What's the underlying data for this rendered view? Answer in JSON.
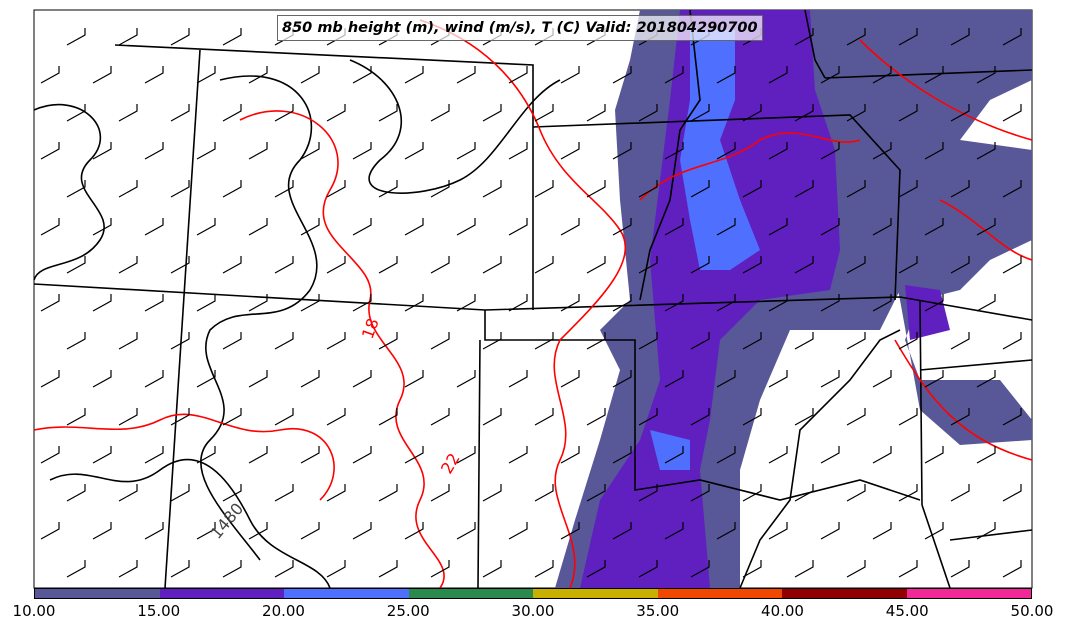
{
  "title": "850 mb height (m), wind (m/s), T (C) Valid: 201804290700",
  "contour_labels": {
    "temp_a": "18",
    "temp_b": "22",
    "height": "1480"
  },
  "colorbar": {
    "colors": [
      "#585898",
      "#6020c0",
      "#4f6fff",
      "#2a8a4e",
      "#c8b000",
      "#f04800",
      "#900000",
      "#f02898"
    ],
    "ticks": [
      "10.00",
      "15.00",
      "20.00",
      "25.00",
      "30.00",
      "35.00",
      "40.00",
      "45.00",
      "50.00"
    ]
  }
}
